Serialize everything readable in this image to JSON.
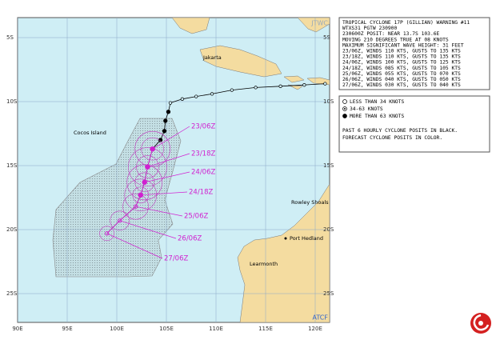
{
  "header": {
    "lines": [
      "TROPICAL CYCLONE 17P (GILLIAN) WARNING #11",
      "WTXS31 PGTW 230900",
      "230600Z POSIT: NEAR 13.7S 103.6E",
      "MOVING 210 DEGREES TRUE AT 08 KNOTS",
      "MAXIMUM SIGNIFICANT WAVE HEIGHT: 31 FEET",
      "23/06Z, WINDS 110 KTS, GUSTS TO 135 KTS",
      "23/18Z, WINDS 110 KTS, GUSTS TO 135 KTS",
      "24/06Z, WINDS 100 KTS, GUSTS TO 125 KTS",
      "24/18Z, WINDS 085 KTS, GUSTS TO 105 KTS",
      "25/06Z, WINDS 055 KTS, GUSTS TO 070 KTS",
      "26/06Z, WINDS 040 KTS, GUSTS TO 050 KTS",
      "27/06Z, WINDS 030 KTS, GUSTS TO 040 KTS"
    ]
  },
  "legend": {
    "items": [
      "LESS THAN 34 KNOTS",
      "34-63 KNOTS",
      "MORE THAN 63 KNOTS"
    ],
    "notes": [
      "PAST 6 HOURLY CYCLONE POSITS IN BLACK.",
      "FORECAST CYCLONE POSITS IN COLOR."
    ]
  },
  "map": {
    "lat_labels": [
      "5S",
      "10S",
      "15S",
      "20S",
      "25S"
    ],
    "lon_labels": [
      "90E",
      "95E",
      "100E",
      "105E",
      "110E",
      "115E",
      "120E"
    ],
    "places": [
      "Jakarta",
      "Cocos Island",
      "Rowley Shoals",
      "Port Hedland",
      "Learmonth"
    ],
    "agency": [
      "JTWC",
      "ATCF"
    ]
  },
  "track": {
    "past": [
      {
        "lat": -8.6,
        "lon": 121.0
      },
      {
        "lat": -8.7,
        "lon": 118.9
      },
      {
        "lat": -8.8,
        "lon": 116.5
      },
      {
        "lat": -8.9,
        "lon": 114.0
      },
      {
        "lat": -9.1,
        "lon": 111.6
      },
      {
        "lat": -9.4,
        "lon": 109.6
      },
      {
        "lat": -9.6,
        "lon": 108.0
      },
      {
        "lat": -9.8,
        "lon": 106.6
      },
      {
        "lat": -10.1,
        "lon": 105.4
      },
      {
        "lat": -10.8,
        "lon": 105.2
      },
      {
        "lat": -11.5,
        "lon": 104.9
      },
      {
        "lat": -12.3,
        "lon": 104.8
      },
      {
        "lat": -13.0,
        "lon": 104.4
      }
    ],
    "forecast": [
      {
        "label": "23/06Z",
        "lat": -13.7,
        "lon": 103.6
      },
      {
        "label": "23/18Z",
        "lat": -15.1,
        "lon": 103.1
      },
      {
        "label": "24/06Z",
        "lat": -16.3,
        "lon": 102.8
      },
      {
        "label": "24/18Z",
        "lat": -17.3,
        "lon": 102.4
      },
      {
        "label": "25/06Z",
        "lat": -18.2,
        "lon": 101.9
      },
      {
        "label": "26/06Z",
        "lat": -19.3,
        "lon": 100.3
      },
      {
        "label": "27/06Z",
        "lat": -20.3,
        "lon": 99.0
      }
    ]
  }
}
